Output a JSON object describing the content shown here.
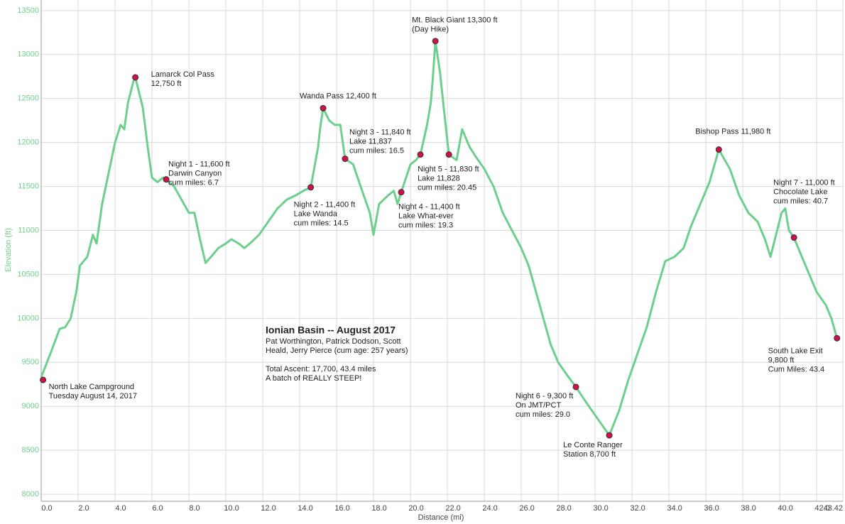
{
  "chart_data": {
    "type": "line",
    "x_label": "Distance (mi)",
    "y_label": "Elevation (ft)",
    "xlim": [
      0,
      43.42
    ],
    "ylim": [
      7920,
      13620
    ],
    "xticks": [
      {
        "value": 0,
        "label": "0.0"
      },
      {
        "value": 2,
        "label": "2.0"
      },
      {
        "value": 4,
        "label": "4.0"
      },
      {
        "value": 6,
        "label": "6.0"
      },
      {
        "value": 8,
        "label": "8.0"
      },
      {
        "value": 10,
        "label": "10.0"
      },
      {
        "value": 12,
        "label": "12.0"
      },
      {
        "value": 14,
        "label": "14.0"
      },
      {
        "value": 16,
        "label": "16.0"
      },
      {
        "value": 18,
        "label": "18.0"
      },
      {
        "value": 20,
        "label": "20.0"
      },
      {
        "value": 22,
        "label": "22.0"
      },
      {
        "value": 24,
        "label": "24.0"
      },
      {
        "value": 26,
        "label": "26.0"
      },
      {
        "value": 28,
        "label": "28.0"
      },
      {
        "value": 30,
        "label": "30.0"
      },
      {
        "value": 32,
        "label": "32.0"
      },
      {
        "value": 34,
        "label": "34.0"
      },
      {
        "value": 36,
        "label": "36.0"
      },
      {
        "value": 38,
        "label": "38.0"
      },
      {
        "value": 40,
        "label": "40.0"
      },
      {
        "value": 42,
        "label": "42.0"
      },
      43.42
    ],
    "yticks": [
      8000,
      8500,
      9000,
      9500,
      10000,
      10500,
      11000,
      11500,
      12000,
      12500,
      13000,
      13500
    ],
    "grid": true,
    "series": [
      {
        "color": "#6dcf8c",
        "x": [
          0.0,
          0.5,
          1.0,
          1.3,
          1.6,
          1.9,
          2.1,
          2.5,
          2.8,
          3.0,
          3.3,
          3.7,
          4.0,
          4.3,
          4.5,
          4.7,
          5.0,
          5.1,
          5.5,
          5.8,
          6.0,
          6.3,
          6.6,
          6.77,
          7.2,
          7.6,
          8.0,
          8.3,
          8.6,
          8.9,
          9.2,
          9.6,
          10.0,
          10.3,
          10.7,
          11.0,
          11.3,
          11.8,
          12.3,
          12.8,
          13.3,
          13.8,
          14.2,
          14.6,
          15.0,
          15.1,
          15.27,
          15.6,
          15.9,
          16.2,
          16.46,
          16.9,
          17.3,
          17.8,
          18.0,
          18.3,
          18.8,
          19.1,
          19.3,
          19.5,
          20.0,
          20.3,
          20.54,
          20.9,
          21.1,
          21.2,
          21.35,
          21.6,
          21.8,
          22.08,
          22.5,
          22.8,
          23.2,
          23.5,
          24.0,
          24.5,
          25.0,
          25.5,
          26.0,
          26.4,
          26.8,
          27.2,
          27.6,
          28.0,
          28.5,
          28.96,
          29.5,
          30.0,
          30.4,
          30.77,
          31.3,
          31.8,
          32.3,
          32.8,
          33.3,
          33.8,
          34.3,
          34.8,
          35.2,
          35.7,
          36.2,
          36.7,
          37.3,
          37.8,
          38.3,
          38.8,
          39.2,
          39.5,
          39.8,
          40.1,
          40.3,
          40.5,
          40.77,
          41.2,
          41.6,
          42.0,
          42.5,
          42.8,
          43.1
        ],
        "values": [
          9330,
          9600,
          9880,
          9900,
          10000,
          10300,
          10600,
          10700,
          10950,
          10850,
          11300,
          11700,
          12000,
          12200,
          12150,
          12450,
          12700,
          12740,
          12400,
          11900,
          11600,
          11550,
          11600,
          11580,
          11500,
          11350,
          11200,
          11200,
          10900,
          10630,
          10700,
          10800,
          10850,
          10900,
          10850,
          10800,
          10850,
          10950,
          11100,
          11250,
          11350,
          11400,
          11450,
          11490,
          11950,
          12150,
          12390,
          12250,
          12200,
          12200,
          11815,
          11750,
          11500,
          11200,
          10950,
          11300,
          11400,
          11450,
          11300,
          11435,
          11750,
          11800,
          11863,
          12200,
          12450,
          12700,
          13153,
          12800,
          12400,
          11863,
          11800,
          12150,
          11950,
          11850,
          11700,
          11500,
          11200,
          11000,
          10800,
          10600,
          10300,
          10000,
          9700,
          9500,
          9350,
          9220,
          9050,
          8900,
          8780,
          8670,
          8950,
          9300,
          9600,
          9900,
          10300,
          10650,
          10700,
          10800,
          11050,
          11300,
          11550,
          11919,
          11700,
          11400,
          11200,
          11100,
          10900,
          10700,
          10950,
          11200,
          11250,
          11000,
          10919,
          10700,
          10500,
          10300,
          10150,
          10000,
          9774
        ]
      }
    ],
    "waypoints": [
      {
        "x": 0.1,
        "y": 9300,
        "label": [
          "North Lake Campground",
          "Tuesday August 14, 2017"
        ]
      },
      {
        "x": 5.1,
        "y": 12740,
        "label": [
          "Lamarck Col Pass",
          "12,750 ft"
        ]
      },
      {
        "x": 6.77,
        "y": 11580,
        "label": [
          "Night 1 - 11,600 ft",
          "Darwin Canyon",
          "cum miles: 6.7"
        ]
      },
      {
        "x": 14.6,
        "y": 11490,
        "label": [
          "Night 2 - 11,400 ft",
          "Lake Wanda",
          "cum miles: 14.5"
        ]
      },
      {
        "x": 15.27,
        "y": 12390,
        "label": [
          "Wanda Pass 12,400 ft"
        ]
      },
      {
        "x": 16.46,
        "y": 11815,
        "label": [
          "Night 3 - 11,840 ft",
          "Lake 11,837",
          "cum miles: 16.5"
        ]
      },
      {
        "x": 19.5,
        "y": 11435,
        "label": [
          "Night 4 - 11,400 ft",
          "Lake What-ever",
          "cum miles: 19.3"
        ]
      },
      {
        "x": 20.54,
        "y": 11863,
        "label": [
          "Night 5 - 11,830 ft",
          "Lake 11,828",
          "cum miles: 20.45"
        ]
      },
      {
        "x": 21.35,
        "y": 13153,
        "label": [
          "Mt. Black Giant 13,300 ft",
          "(Day Hike)"
        ]
      },
      {
        "x": 22.08,
        "y": 11863
      },
      {
        "x": 28.96,
        "y": 9220,
        "label": [
          "Night 6 - 9,300 ft",
          "On JMT/PCT",
          "cum miles: 29.0"
        ]
      },
      {
        "x": 30.77,
        "y": 8670,
        "label": [
          "Le Conte Ranger",
          "Station 8,700 ft"
        ]
      },
      {
        "x": 36.7,
        "y": 11919,
        "label": [
          "Bishop Pass 11,980 ft"
        ]
      },
      {
        "x": 40.77,
        "y": 10919,
        "label": [
          "Night 7 - 11,000 ft",
          "Chocolate Lake",
          "cum miles: 40.7"
        ]
      },
      {
        "x": 43.1,
        "y": 9774,
        "label": [
          "South Lake Exit",
          "9,800 ft",
          "Cum Miles: 43.4"
        ]
      }
    ],
    "title": "Ionian Basin -- August 2017",
    "notes": [
      "Pat Worthington, Patrick Dodson, Scott",
      "Heald, Jerry Pierce (cum age: 257 years)",
      "Total Ascent: 17,700, 43.4 miles",
      "A batch of REALLY STEEP!"
    ]
  }
}
